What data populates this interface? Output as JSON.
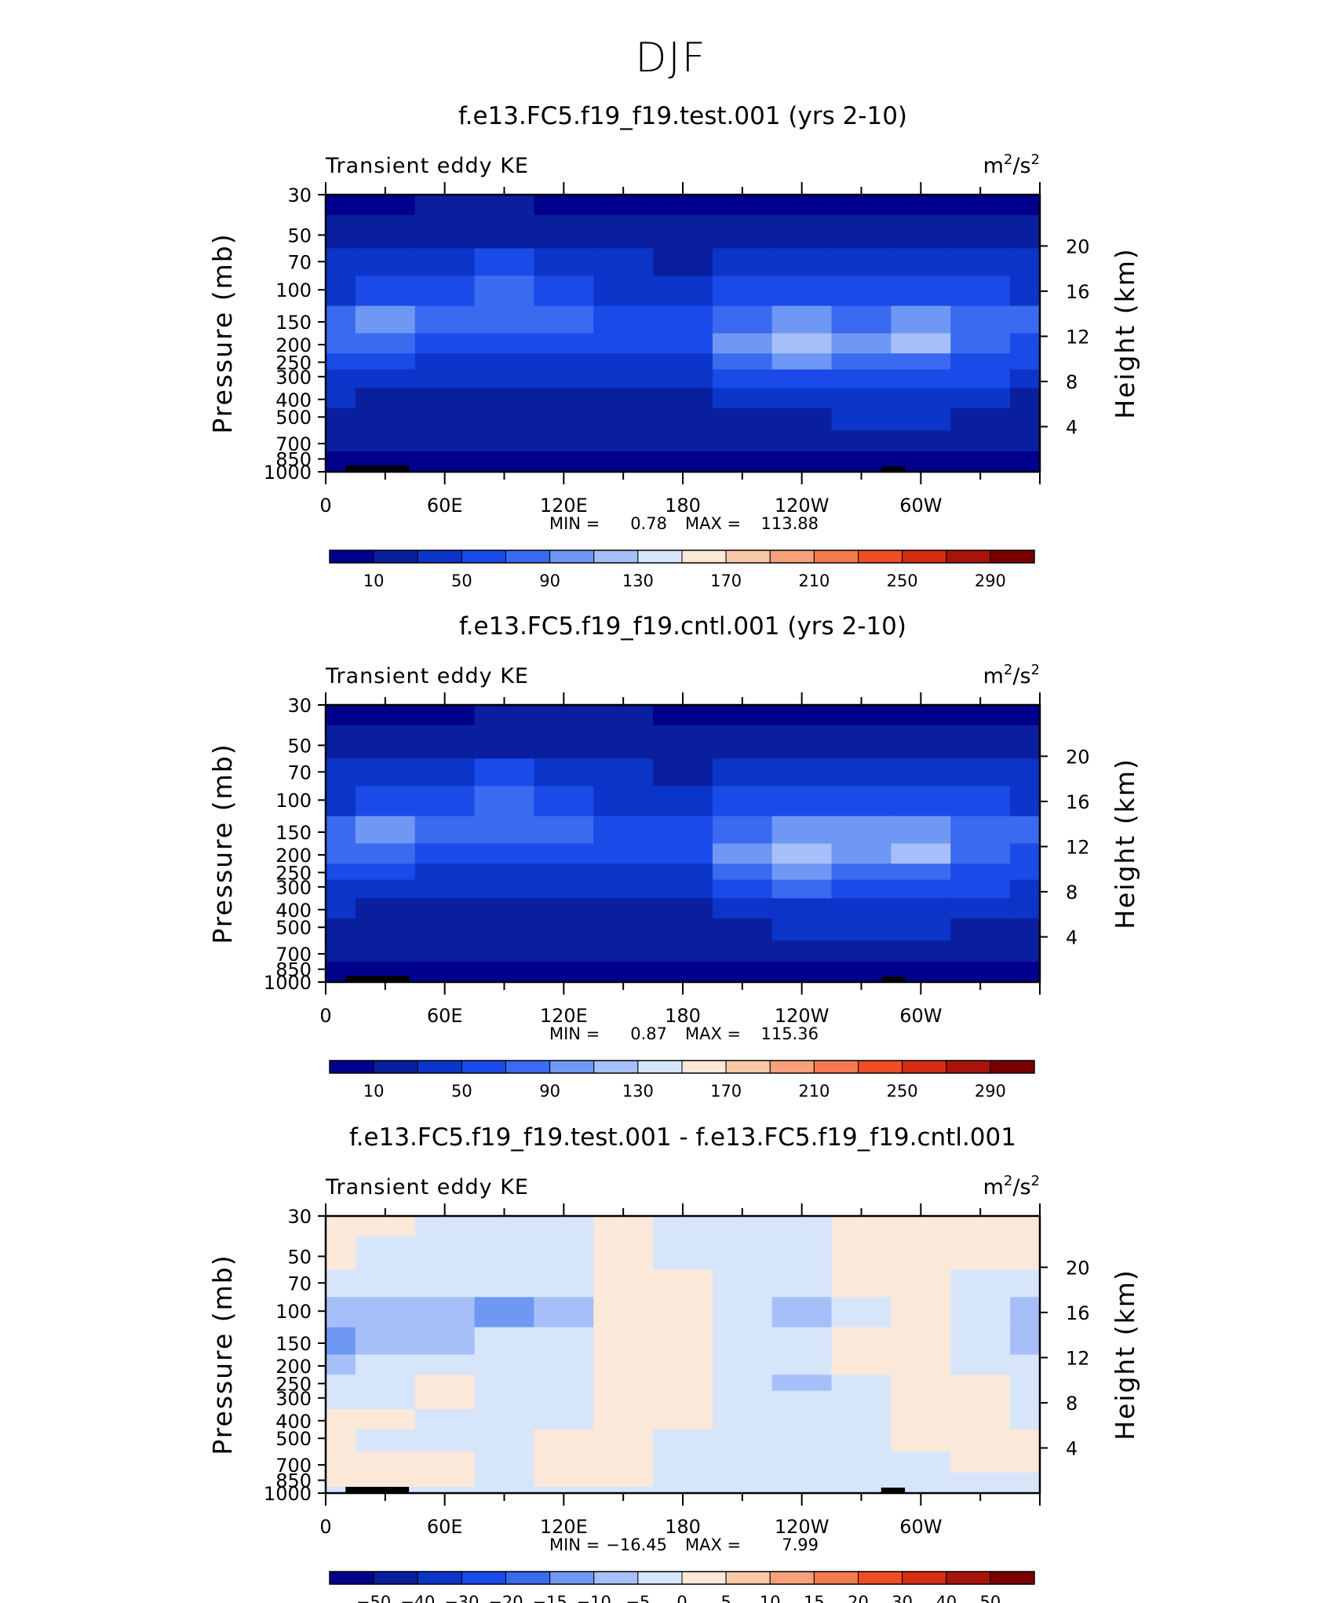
{
  "figure": {
    "title": "DJF"
  },
  "axes": {
    "y_left_label": "Pressure (mb)",
    "y_right_label": "Height (km)",
    "pressure_ticks": [
      "30",
      "50",
      "70",
      "100",
      "150",
      "200",
      "250",
      "300",
      "400",
      "500",
      "700",
      "850",
      "1000"
    ],
    "pressure_values": [
      30,
      50,
      70,
      100,
      150,
      200,
      250,
      300,
      400,
      500,
      700,
      850,
      1000
    ],
    "height_ticks": [
      "20",
      "16",
      "12",
      "8",
      "4"
    ],
    "height_values": [
      20,
      16,
      12,
      8,
      4
    ],
    "x_ticks": [
      "0",
      "60E",
      "120E",
      "180",
      "120W",
      "60W"
    ],
    "x_values": [
      0,
      60,
      120,
      180,
      240,
      300
    ],
    "x_range": [
      0,
      360
    ]
  },
  "panels": [
    {
      "title": "f.e13.FC5.f19_f19.test.001 (yrs 2-10)",
      "left_label": "Transient eddy KE",
      "units_base": "m",
      "units_exp1": "2",
      "units_mid": "/s",
      "units_exp2": "2",
      "min_label": "MIN =",
      "min_value": "0.78",
      "max_label": "MAX =",
      "max_value": "113.88",
      "colorbar_labels": [
        "10",
        "50",
        "90",
        "130",
        "170",
        "210",
        "250",
        "290"
      ]
    },
    {
      "title": "f.e13.FC5.f19_f19.cntl.001 (yrs 2-10)",
      "left_label": "Transient eddy KE",
      "units_base": "m",
      "units_exp1": "2",
      "units_mid": "/s",
      "units_exp2": "2",
      "min_label": "MIN =",
      "min_value": "0.87",
      "max_label": "MAX =",
      "max_value": "115.36",
      "colorbar_labels": [
        "10",
        "50",
        "90",
        "130",
        "170",
        "210",
        "250",
        "290"
      ]
    },
    {
      "title": "f.e13.FC5.f19_f19.test.001 - f.e13.FC5.f19_f19.cntl.001",
      "left_label": "Transient eddy KE",
      "units_base": "m",
      "units_exp1": "2",
      "units_mid": "/s",
      "units_exp2": "2",
      "min_label": "MIN =",
      "min_value": "−16.45",
      "max_label": "MAX =",
      "max_value": "7.99",
      "colorbar_labels": [
        "−50",
        "−40",
        "−30",
        "−20",
        "−15",
        "−10",
        "−5",
        "0",
        "5",
        "10",
        "15",
        "20",
        "30",
        "40",
        "50"
      ]
    }
  ],
  "colors": {
    "palette": [
      "#00008c",
      "#0a1f9e",
      "#0b35c8",
      "#1a4be8",
      "#3a6af0",
      "#6f98f5",
      "#a6bff8",
      "#d7e5fb",
      "#fbe8d8",
      "#f9c8a8",
      "#f7a07a",
      "#f47a50",
      "#ee4d26",
      "#d42d12",
      "#a8140a",
      "#7a0000"
    ],
    "diff_palette": [
      "#00008c",
      "#0a1f9e",
      "#0b35c8",
      "#1a4be8",
      "#3a6af0",
      "#6f98f5",
      "#a6bff8",
      "#d7e5fb",
      "#fbe8d8",
      "#f9c8a8",
      "#f7a07a",
      "#f47a50",
      "#ee4d26",
      "#d42d12",
      "#a8140a",
      "#7a0000"
    ]
  },
  "chart_data": [
    {
      "type": "heatmap",
      "title": "f.e13.FC5.f19_f19.test.001 (yrs 2-10)",
      "variable": "Transient eddy KE",
      "units": "m2/s2",
      "x": [
        0,
        30,
        60,
        90,
        120,
        150,
        180,
        210,
        240,
        270,
        300,
        330,
        360
      ],
      "y_pressure": [
        30,
        50,
        70,
        100,
        150,
        200,
        250,
        300,
        400,
        500,
        700,
        850,
        1000
      ],
      "values": [
        [
          4,
          5,
          12,
          12,
          8,
          6,
          6,
          4,
          4,
          4,
          4,
          4,
          4
        ],
        [
          20,
          20,
          26,
          22,
          18,
          16,
          16,
          14,
          14,
          12,
          12,
          14,
          18
        ],
        [
          34,
          34,
          42,
          50,
          44,
          30,
          26,
          30,
          34,
          34,
          34,
          30,
          34
        ],
        [
          46,
          54,
          64,
          78,
          66,
          46,
          40,
          58,
          62,
          56,
          58,
          50,
          46
        ],
        [
          80,
          94,
          84,
          84,
          70,
          54,
          58,
          86,
          104,
          86,
          100,
          80,
          72
        ],
        [
          74,
          70,
          62,
          60,
          54,
          50,
          56,
          96,
          110,
          96,
          110,
          80,
          64
        ],
        [
          56,
          50,
          46,
          44,
          42,
          40,
          46,
          82,
          92,
          80,
          86,
          66,
          52
        ],
        [
          44,
          36,
          32,
          30,
          30,
          30,
          38,
          62,
          68,
          62,
          62,
          50,
          40
        ],
        [
          30,
          24,
          22,
          20,
          20,
          20,
          26,
          40,
          42,
          42,
          42,
          34,
          28
        ],
        [
          22,
          18,
          16,
          14,
          14,
          14,
          18,
          26,
          28,
          30,
          30,
          26,
          22
        ],
        [
          12,
          12,
          10,
          10,
          10,
          10,
          12,
          12,
          14,
          16,
          16,
          14,
          12
        ],
        [
          6,
          6,
          6,
          6,
          6,
          6,
          6,
          6,
          8,
          8,
          8,
          8,
          6
        ],
        [
          2,
          2,
          2,
          2,
          2,
          2,
          2,
          2,
          2,
          2,
          2,
          2,
          2
        ]
      ],
      "levels": [
        10,
        30,
        50,
        70,
        90,
        110,
        130,
        150,
        170,
        190,
        210,
        230,
        250,
        270,
        290
      ],
      "min": 0.78,
      "max": 113.88,
      "xlim": [
        0,
        360
      ],
      "ylim_pressure": [
        1000,
        30
      ]
    },
    {
      "type": "heatmap",
      "title": "f.e13.FC5.f19_f19.cntl.001 (yrs 2-10)",
      "variable": "Transient eddy KE",
      "units": "m2/s2",
      "x": [
        0,
        30,
        60,
        90,
        120,
        150,
        180,
        210,
        240,
        270,
        300,
        330,
        360
      ],
      "y_pressure": [
        30,
        50,
        70,
        100,
        150,
        200,
        250,
        300,
        400,
        500,
        700,
        850,
        1000
      ],
      "values": [
        [
          4,
          4,
          6,
          12,
          12,
          12,
          6,
          4,
          4,
          4,
          4,
          4,
          4
        ],
        [
          20,
          20,
          24,
          24,
          20,
          18,
          16,
          14,
          14,
          12,
          12,
          14,
          18
        ],
        [
          34,
          36,
          42,
          50,
          46,
          32,
          28,
          32,
          34,
          34,
          34,
          30,
          34
        ],
        [
          48,
          56,
          66,
          78,
          68,
          48,
          42,
          60,
          64,
          58,
          60,
          52,
          48
        ],
        [
          82,
          96,
          86,
          86,
          72,
          56,
          60,
          88,
          108,
          90,
          104,
          82,
          74
        ],
        [
          76,
          72,
          64,
          62,
          56,
          52,
          58,
          98,
          112,
          98,
          112,
          82,
          66
        ],
        [
          58,
          52,
          48,
          46,
          44,
          42,
          48,
          84,
          94,
          82,
          88,
          68,
          54
        ],
        [
          46,
          38,
          34,
          32,
          32,
          32,
          40,
          64,
          70,
          64,
          64,
          52,
          42
        ],
        [
          32,
          26,
          24,
          22,
          22,
          22,
          28,
          42,
          44,
          44,
          44,
          36,
          30
        ],
        [
          24,
          20,
          18,
          16,
          16,
          16,
          20,
          28,
          30,
          32,
          32,
          28,
          24
        ],
        [
          14,
          14,
          12,
          12,
          12,
          12,
          14,
          14,
          16,
          18,
          18,
          16,
          14
        ],
        [
          6,
          6,
          6,
          6,
          6,
          6,
          6,
          6,
          8,
          8,
          8,
          8,
          6
        ],
        [
          2,
          2,
          2,
          2,
          2,
          2,
          2,
          2,
          2,
          2,
          2,
          2,
          2
        ]
      ],
      "levels": [
        10,
        30,
        50,
        70,
        90,
        110,
        130,
        150,
        170,
        190,
        210,
        230,
        250,
        270,
        290
      ],
      "min": 0.87,
      "max": 115.36,
      "xlim": [
        0,
        360
      ],
      "ylim_pressure": [
        1000,
        30
      ]
    },
    {
      "type": "heatmap",
      "title": "f.e13.FC5.f19_f19.test.001 - f.e13.FC5.f19_f19.cntl.001",
      "variable": "Transient eddy KE",
      "units": "m2/s2",
      "x": [
        0,
        30,
        60,
        90,
        120,
        150,
        180,
        210,
        240,
        270,
        300,
        330,
        360
      ],
      "y_pressure": [
        30,
        50,
        70,
        100,
        150,
        200,
        250,
        300,
        400,
        500,
        700,
        850,
        1000
      ],
      "values": [
        [
          1,
          1,
          -1,
          -1,
          -1,
          1,
          -1,
          -1,
          -1,
          1,
          1,
          1,
          1
        ],
        [
          1,
          -1,
          -1,
          -1,
          -1,
          1,
          -1,
          -1,
          -1,
          1,
          1,
          1,
          1
        ],
        [
          -1,
          -1,
          -2,
          -3,
          -3,
          1,
          1,
          -2,
          -2,
          1,
          1,
          -1,
          -1
        ],
        [
          -7,
          -7,
          -8,
          -12,
          -6,
          2,
          1,
          -3,
          -7,
          -4,
          1,
          -3,
          -8
        ],
        [
          -12,
          -8,
          -6,
          -3,
          -2,
          1,
          2,
          -2,
          -4,
          2,
          4,
          -2,
          -6
        ],
        [
          -6,
          -4,
          -3,
          -2,
          -1,
          2,
          3,
          -2,
          -4,
          4,
          3,
          -3,
          -5
        ],
        [
          -3,
          -2,
          1,
          -2,
          -1,
          2,
          1,
          -5,
          -6,
          -3,
          2,
          1,
          -2
        ],
        [
          -2,
          -1,
          1,
          -1,
          -1,
          2,
          1,
          -3,
          -4,
          -2,
          2,
          1,
          -1
        ],
        [
          2,
          1,
          -1,
          -1,
          -1,
          2,
          1,
          -1,
          -3,
          -1,
          2,
          1,
          -1
        ],
        [
          1,
          -1,
          -1,
          -1,
          1,
          1,
          -1,
          -1,
          -1,
          -1,
          1,
          1,
          1
        ],
        [
          2,
          2,
          1,
          -1,
          1,
          1,
          -1,
          -1,
          -1,
          -1,
          -1,
          1,
          1
        ],
        [
          1,
          2,
          1,
          -1,
          1,
          1,
          -1,
          -1,
          -1,
          -1,
          -1,
          -1,
          -1
        ],
        [
          -1,
          -1,
          -1,
          -1,
          -1,
          -1,
          -1,
          -1,
          -1,
          -1,
          -1,
          -1,
          -1
        ]
      ],
      "levels": [
        -50,
        -40,
        -30,
        -20,
        -15,
        -10,
        -5,
        0,
        5,
        10,
        15,
        20,
        30,
        40,
        50
      ],
      "min": -16.45,
      "max": 7.99,
      "xlim": [
        0,
        360
      ],
      "ylim_pressure": [
        1000,
        30
      ]
    }
  ]
}
